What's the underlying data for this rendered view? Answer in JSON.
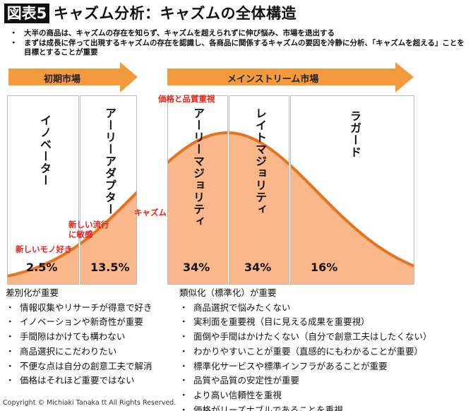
{
  "header": {
    "badge": "図表5",
    "title": "キャズム分析：キャズムの全体構造"
  },
  "summary": [
    "大半の商品は、キャズムの存在を知らず、キャズムを超えられずに伸び悩み、市場を退出する",
    "まずは成長に伴って出現するキャズムの存在を認識し、各商品に関係するキャズムの要因を冷静に分析、「キャズムを超える」ことを目標とすることが重要"
  ],
  "markets": {
    "early": "初期市場",
    "mainstream": "メインストリーム市場"
  },
  "segments": [
    {
      "name": "イノベーター",
      "share": "2.5%"
    },
    {
      "name": "アーリーアダプター",
      "share": "13.5%"
    },
    {
      "name": "アーリーマジョリティ",
      "share": "34%"
    },
    {
      "name": "レイトマジョリティ",
      "share": "34%"
    },
    {
      "name": "ラガード",
      "share": "16%"
    }
  ],
  "annotations": {
    "price_quality": "価格と品質重視",
    "chasm": "キャズム",
    "trend": "新しい流行\nに敏感",
    "novelty": "新しいモノ好き"
  },
  "left_list": {
    "heading": "差別化が重要",
    "items": [
      "情報収集やリサーチが得意で好き",
      "イノベーションや新奇性が重要",
      "手間隙はかけても構わない",
      "商品選択にこだわりたい",
      "不便な点は自分の創意工夫で解消",
      "価格はそれほど重要ではない"
    ]
  },
  "right_list": {
    "heading": "類似化（標準化）が重要",
    "items": [
      "商品選択で悩みたくない",
      "実利面を重要視（目に見える成果を重要視）",
      "面倒や手間はかけたくない（自分で創意工夫はしたくない）",
      "わかりやすいことが重要（直感的にもわかることが重要）",
      "標準化サービスや標準インフラがあることが重要",
      "品質や品質の安定性が重要",
      "より高い信頼性を重視",
      "価格がリーズナブルであることを重視"
    ]
  },
  "copyright": "Copyright © Michiaki Tanaka tt All Rights Reserved.",
  "colors": {
    "accent": "#f39a3c",
    "curve": "#e8731e",
    "fill": "#f9b78a",
    "annotation": "#e8231a"
  }
}
